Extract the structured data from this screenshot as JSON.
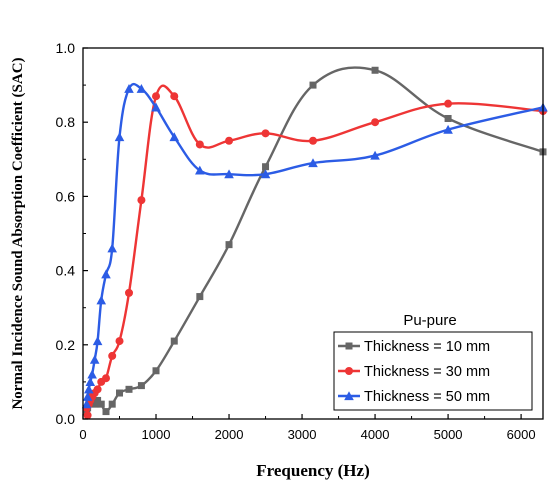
{
  "chart_data": {
    "type": "line",
    "xlabel": "Frequency (Hz)",
    "ylabel": "Normal Incidence Sound Absorption Coefficient (SAC)",
    "xlim": [
      0,
      6300
    ],
    "ylim": [
      0.0,
      1.0
    ],
    "xticks": [
      0,
      1000,
      2000,
      3000,
      4000,
      5000,
      6000
    ],
    "xtick_labels": [
      "0",
      "1000",
      "2000",
      "3000",
      "4000",
      "5000",
      "6000"
    ],
    "yticks": [
      0.0,
      0.2,
      0.4,
      0.6,
      0.8,
      1.0
    ],
    "ytick_labels": [
      "0.0",
      "0.2",
      "0.4",
      "0.6",
      "0.8",
      "1.0"
    ],
    "grid": false,
    "legend": {
      "title": "Pu-pure",
      "position": "bottom-right"
    },
    "series": [
      {
        "name": "Thickness = 10 mm",
        "color": "#666666",
        "marker": "square",
        "x": [
          50,
          63,
          80,
          100,
          125,
          160,
          200,
          250,
          315,
          400,
          500,
          630,
          800,
          1000,
          1250,
          1600,
          2000,
          2500,
          3150,
          4000,
          5000,
          6300
        ],
        "y": [
          0.02,
          0.03,
          0.05,
          0.06,
          0.05,
          0.04,
          0.05,
          0.04,
          0.02,
          0.04,
          0.07,
          0.08,
          0.09,
          0.13,
          0.21,
          0.33,
          0.47,
          0.68,
          0.9,
          0.94,
          0.81,
          0.72
        ]
      },
      {
        "name": "Thickness = 30 mm",
        "color": "#ee3535",
        "marker": "circle",
        "x": [
          50,
          63,
          80,
          100,
          125,
          160,
          200,
          250,
          315,
          400,
          500,
          630,
          800,
          1000,
          1250,
          1600,
          2000,
          2500,
          3150,
          4000,
          5000,
          6300
        ],
        "y": [
          0.03,
          0.01,
          0.04,
          0.05,
          0.06,
          0.07,
          0.08,
          0.1,
          0.11,
          0.17,
          0.21,
          0.34,
          0.59,
          0.87,
          0.87,
          0.74,
          0.75,
          0.77,
          0.75,
          0.8,
          0.85,
          0.83
        ]
      },
      {
        "name": "Thickness = 50 mm",
        "color": "#2c5ce5",
        "marker": "triangle",
        "x": [
          50,
          63,
          80,
          100,
          125,
          160,
          200,
          250,
          315,
          400,
          500,
          630,
          800,
          1000,
          1250,
          1600,
          2000,
          2500,
          3150,
          4000,
          5000,
          6300
        ],
        "y": [
          0.04,
          0.06,
          0.08,
          0.1,
          0.12,
          0.16,
          0.21,
          0.32,
          0.39,
          0.46,
          0.76,
          0.89,
          0.89,
          0.84,
          0.76,
          0.67,
          0.66,
          0.66,
          0.69,
          0.71,
          0.78,
          0.84
        ]
      }
    ]
  }
}
